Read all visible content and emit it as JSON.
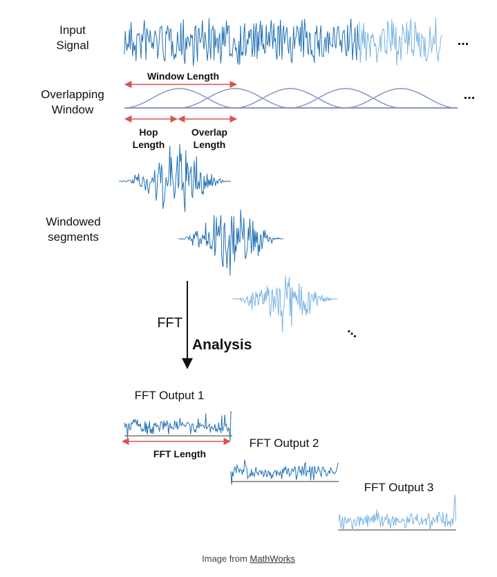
{
  "labels": {
    "input_signal": "Input\nSignal",
    "overlapping_window": "Overlapping\nWindow",
    "window_length": "Window Length",
    "hop_length": "Hop\nLength",
    "overlap_length": "Overlap\nLength",
    "windowed_segments": "Windowed\nsegments",
    "fft": "FFT",
    "analysis": "Analysis",
    "fft_output_1": "FFT Output 1",
    "fft_output_2": "FFT Output 2",
    "fft_output_3": "FFT Output 3",
    "fft_length": "FFT Length",
    "ellipsis": "..."
  },
  "caption": {
    "prefix": "Image from ",
    "link": "MathWorks"
  },
  "colors": {
    "signal_dark": "#1f6fb2",
    "signal_light": "#79b4e3",
    "window_curve": "#8a94c4",
    "arrow_red": "#d9534f",
    "axis": "#333333"
  }
}
